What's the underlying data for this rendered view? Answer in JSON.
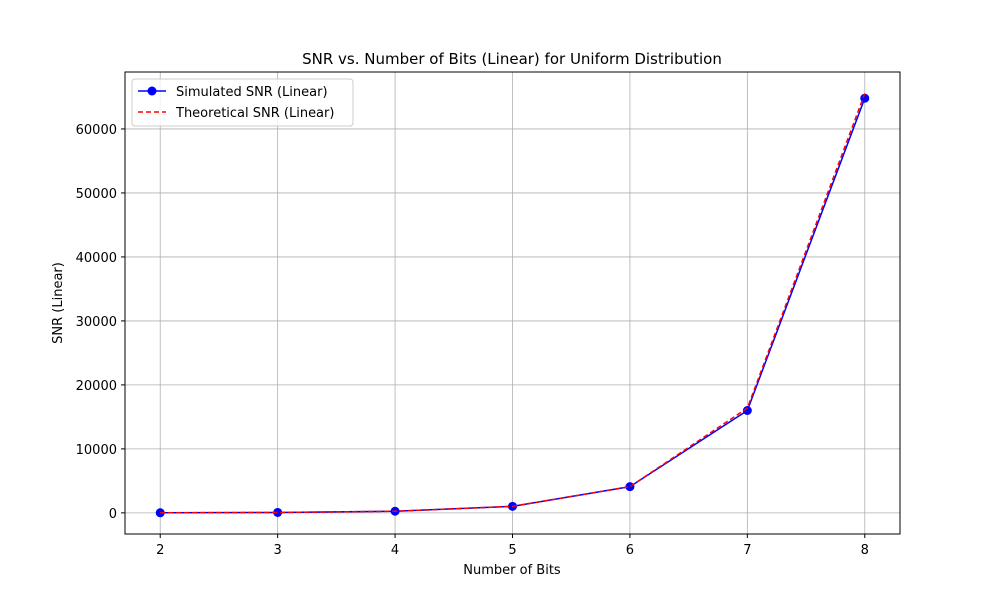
{
  "chart_data": {
    "type": "line",
    "title": "SNR vs. Number of Bits (Linear) for Uniform Distribution",
    "xlabel": "Number of Bits",
    "ylabel": "SNR (Linear)",
    "x": [
      2,
      3,
      4,
      5,
      6,
      7,
      8
    ],
    "xticks": [
      "2",
      "3",
      "4",
      "5",
      "6",
      "7",
      "8"
    ],
    "yticks": [
      "0",
      "10000",
      "20000",
      "30000",
      "40000",
      "50000",
      "60000"
    ],
    "xlim": [
      1.7,
      8.3
    ],
    "ylim": [
      -3300,
      68900
    ],
    "grid": true,
    "legend_position": "top-left",
    "series": [
      {
        "name": "Simulated SNR (Linear)",
        "values": [
          16,
          64,
          256,
          1024,
          4096,
          16000,
          64800
        ],
        "color": "#0000ff",
        "style": "solid",
        "marker": "circle"
      },
      {
        "name": "Theoretical SNR (Linear)",
        "values": [
          16,
          64,
          256,
          1024,
          4096,
          16384,
          65536
        ],
        "color": "#ff0000",
        "style": "dashed",
        "marker": "none"
      }
    ]
  }
}
